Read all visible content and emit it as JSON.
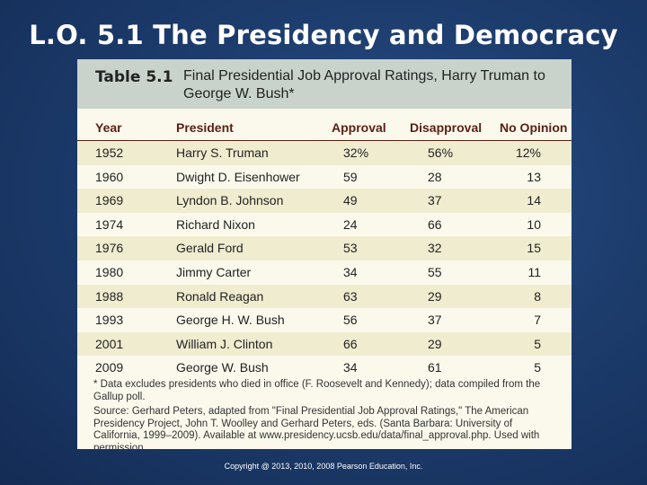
{
  "slide": {
    "title": "L.O. 5.1 The Presidency and Democracy",
    "copyright": "Copyright @ 2013, 2010, 2008 Pearson Education, Inc."
  },
  "table": {
    "label": "Table 5.1",
    "caption": "Final Presidential Job Approval Ratings, Harry Truman to George W. Bush*",
    "headers": {
      "year": "Year",
      "president": "President",
      "approval": "Approval",
      "disapproval": "Disapproval",
      "no_opinion": "No Opinion"
    },
    "rows": [
      {
        "year": "1952",
        "president": "Harry S. Truman",
        "approval": "32%",
        "disapproval": "56%",
        "no_opinion": "12%"
      },
      {
        "year": "1960",
        "president": "Dwight D. Eisenhower",
        "approval": "59",
        "disapproval": "28",
        "no_opinion": "13"
      },
      {
        "year": "1969",
        "president": "Lyndon B. Johnson",
        "approval": "49",
        "disapproval": "37",
        "no_opinion": "14"
      },
      {
        "year": "1974",
        "president": "Richard Nixon",
        "approval": "24",
        "disapproval": "66",
        "no_opinion": "10"
      },
      {
        "year": "1976",
        "president": "Gerald Ford",
        "approval": "53",
        "disapproval": "32",
        "no_opinion": "15"
      },
      {
        "year": "1980",
        "president": "Jimmy Carter",
        "approval": "34",
        "disapproval": "55",
        "no_opinion": "11"
      },
      {
        "year": "1988",
        "president": "Ronald Reagan",
        "approval": "63",
        "disapproval": "29",
        "no_opinion": "8"
      },
      {
        "year": "1993",
        "president": "George H. W. Bush",
        "approval": "56",
        "disapproval": "37",
        "no_opinion": "7"
      },
      {
        "year": "2001",
        "president": "William J. Clinton",
        "approval": "66",
        "disapproval": "29",
        "no_opinion": "5"
      },
      {
        "year": "2009",
        "president": "George W. Bush",
        "approval": "34",
        "disapproval": "61",
        "no_opinion": "5"
      }
    ],
    "footnote": "* Data excludes presidents who died in office (F. Roosevelt and Kennedy); data compiled from the Gallup poll.",
    "source": "Source: Gerhard Peters, adapted from \"Final Presidential Job Approval Ratings,\" The American Presidency Project, John T. Woolley and Gerhard Peters, eds. (Santa Barbara: University of California, 1999–2009). Available at www.presidency.ucsb.edu/data/final_approval.php. Used with permission."
  }
}
